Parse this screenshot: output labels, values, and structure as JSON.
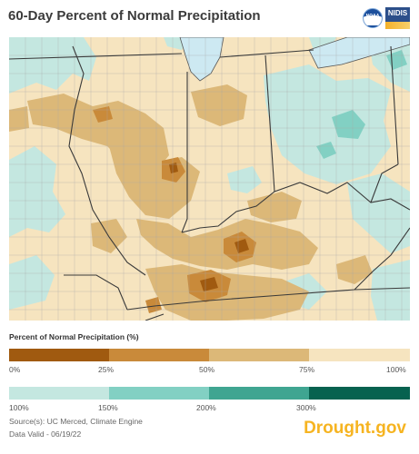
{
  "title": "60-Day Percent of Normal Precipitation",
  "logos": {
    "noaa": "NOAA",
    "nidis": "NIDIS"
  },
  "legend": {
    "title": "Percent of Normal Precipitation (%)",
    "below_normal": {
      "colors": [
        "#a05a10",
        "#c98a3a",
        "#dcb878",
        "#f6e4bf"
      ],
      "ticks": [
        "0%",
        "25%",
        "50%",
        "75%",
        "100%"
      ]
    },
    "above_normal": {
      "colors": [
        "#c4e7e0",
        "#82d0c3",
        "#3fa591",
        "#07624f"
      ],
      "ticks": [
        "100%",
        "150%",
        "200%",
        "300%"
      ]
    }
  },
  "source": "Source(s): UC Merced, Climate Engine",
  "data_valid": "Data Valid - 06/19/22",
  "brand": "Drought.gov",
  "map": {
    "colors": {
      "lake": "#cde9f2",
      "state_border": "#3a3a3a",
      "county_border": "#9a9a9a"
    }
  }
}
